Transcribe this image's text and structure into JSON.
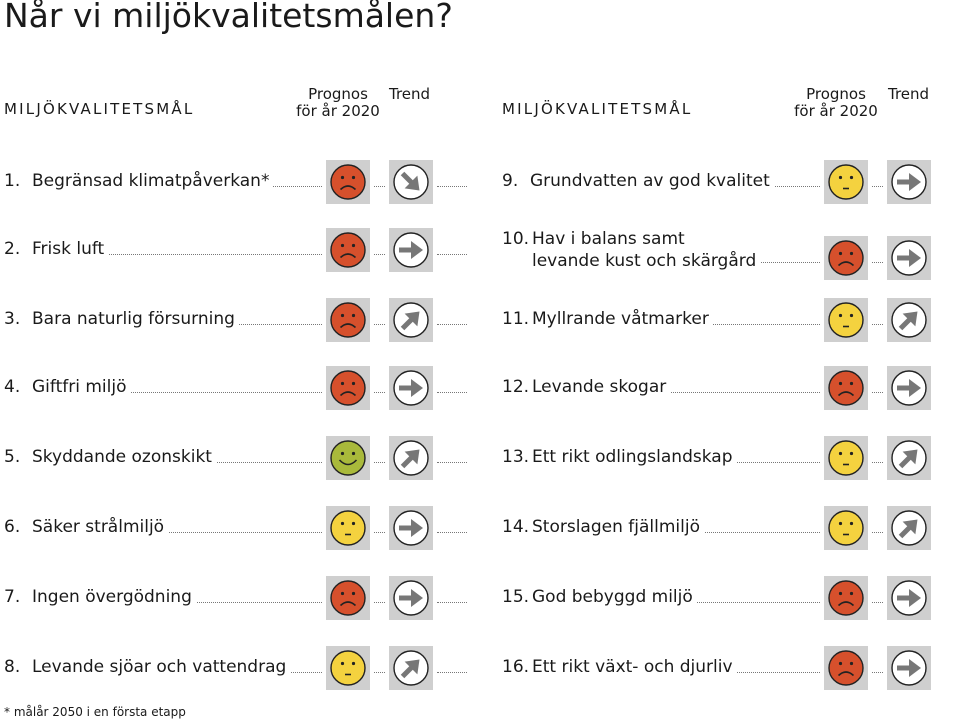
{
  "title": "Når vi miljökvalitetsmålen?",
  "headers": {
    "goal": "MILJÖKVALITETSMÅL",
    "prognosis_line1": "Prognos",
    "prognosis_line2": "för år 2020",
    "trend": "Trend"
  },
  "colors": {
    "red": "#d6502c",
    "yellow": "#f4d23f",
    "green": "#a9b93b",
    "box": "#cfcfcf"
  },
  "goals_left": [
    {
      "num": "1.",
      "name": "Begränsad klimatpåverkan*",
      "status": "red",
      "trend": "down"
    },
    {
      "num": "2.",
      "name": "Frisk luft",
      "status": "red",
      "trend": "right"
    },
    {
      "num": "3.",
      "name": "Bara naturlig försurning",
      "status": "red",
      "trend": "up"
    },
    {
      "num": "4.",
      "name": "Giftfri miljö",
      "status": "red",
      "trend": "right"
    },
    {
      "num": "5.",
      "name": "Skyddande ozonskikt",
      "status": "green",
      "trend": "up"
    },
    {
      "num": "6.",
      "name": "Säker strålmiljö",
      "status": "yellow",
      "trend": "right"
    },
    {
      "num": "7.",
      "name": "Ingen övergödning",
      "status": "red",
      "trend": "right"
    },
    {
      "num": "8.",
      "name": "Levande sjöar och vattendrag",
      "status": "yellow",
      "trend": "up"
    }
  ],
  "goals_right": [
    {
      "num": "9.",
      "name": "Grundvatten av god kvalitet",
      "status": "yellow",
      "trend": "right"
    },
    {
      "num": "10.",
      "name": "Hav i balans samt",
      "name2": "levande kust och skärgård",
      "status": "red",
      "trend": "right"
    },
    {
      "num": "11.",
      "name": "Myllrande våtmarker",
      "status": "yellow",
      "trend": "up"
    },
    {
      "num": "12.",
      "name": "Levande skogar",
      "status": "red",
      "trend": "right"
    },
    {
      "num": "13.",
      "name": "Ett rikt odlingslandskap",
      "status": "yellow",
      "trend": "up"
    },
    {
      "num": "14.",
      "name": "Storslagen fjällmiljö",
      "status": "yellow",
      "trend": "up"
    },
    {
      "num": "15.",
      "name": "God bebyggd miljö",
      "status": "red",
      "trend": "right"
    },
    {
      "num": "16.",
      "name": "Ett rikt växt- och djurliv",
      "status": "red",
      "trend": "right"
    }
  ],
  "footnote": "* målår 2050 i en första etapp"
}
